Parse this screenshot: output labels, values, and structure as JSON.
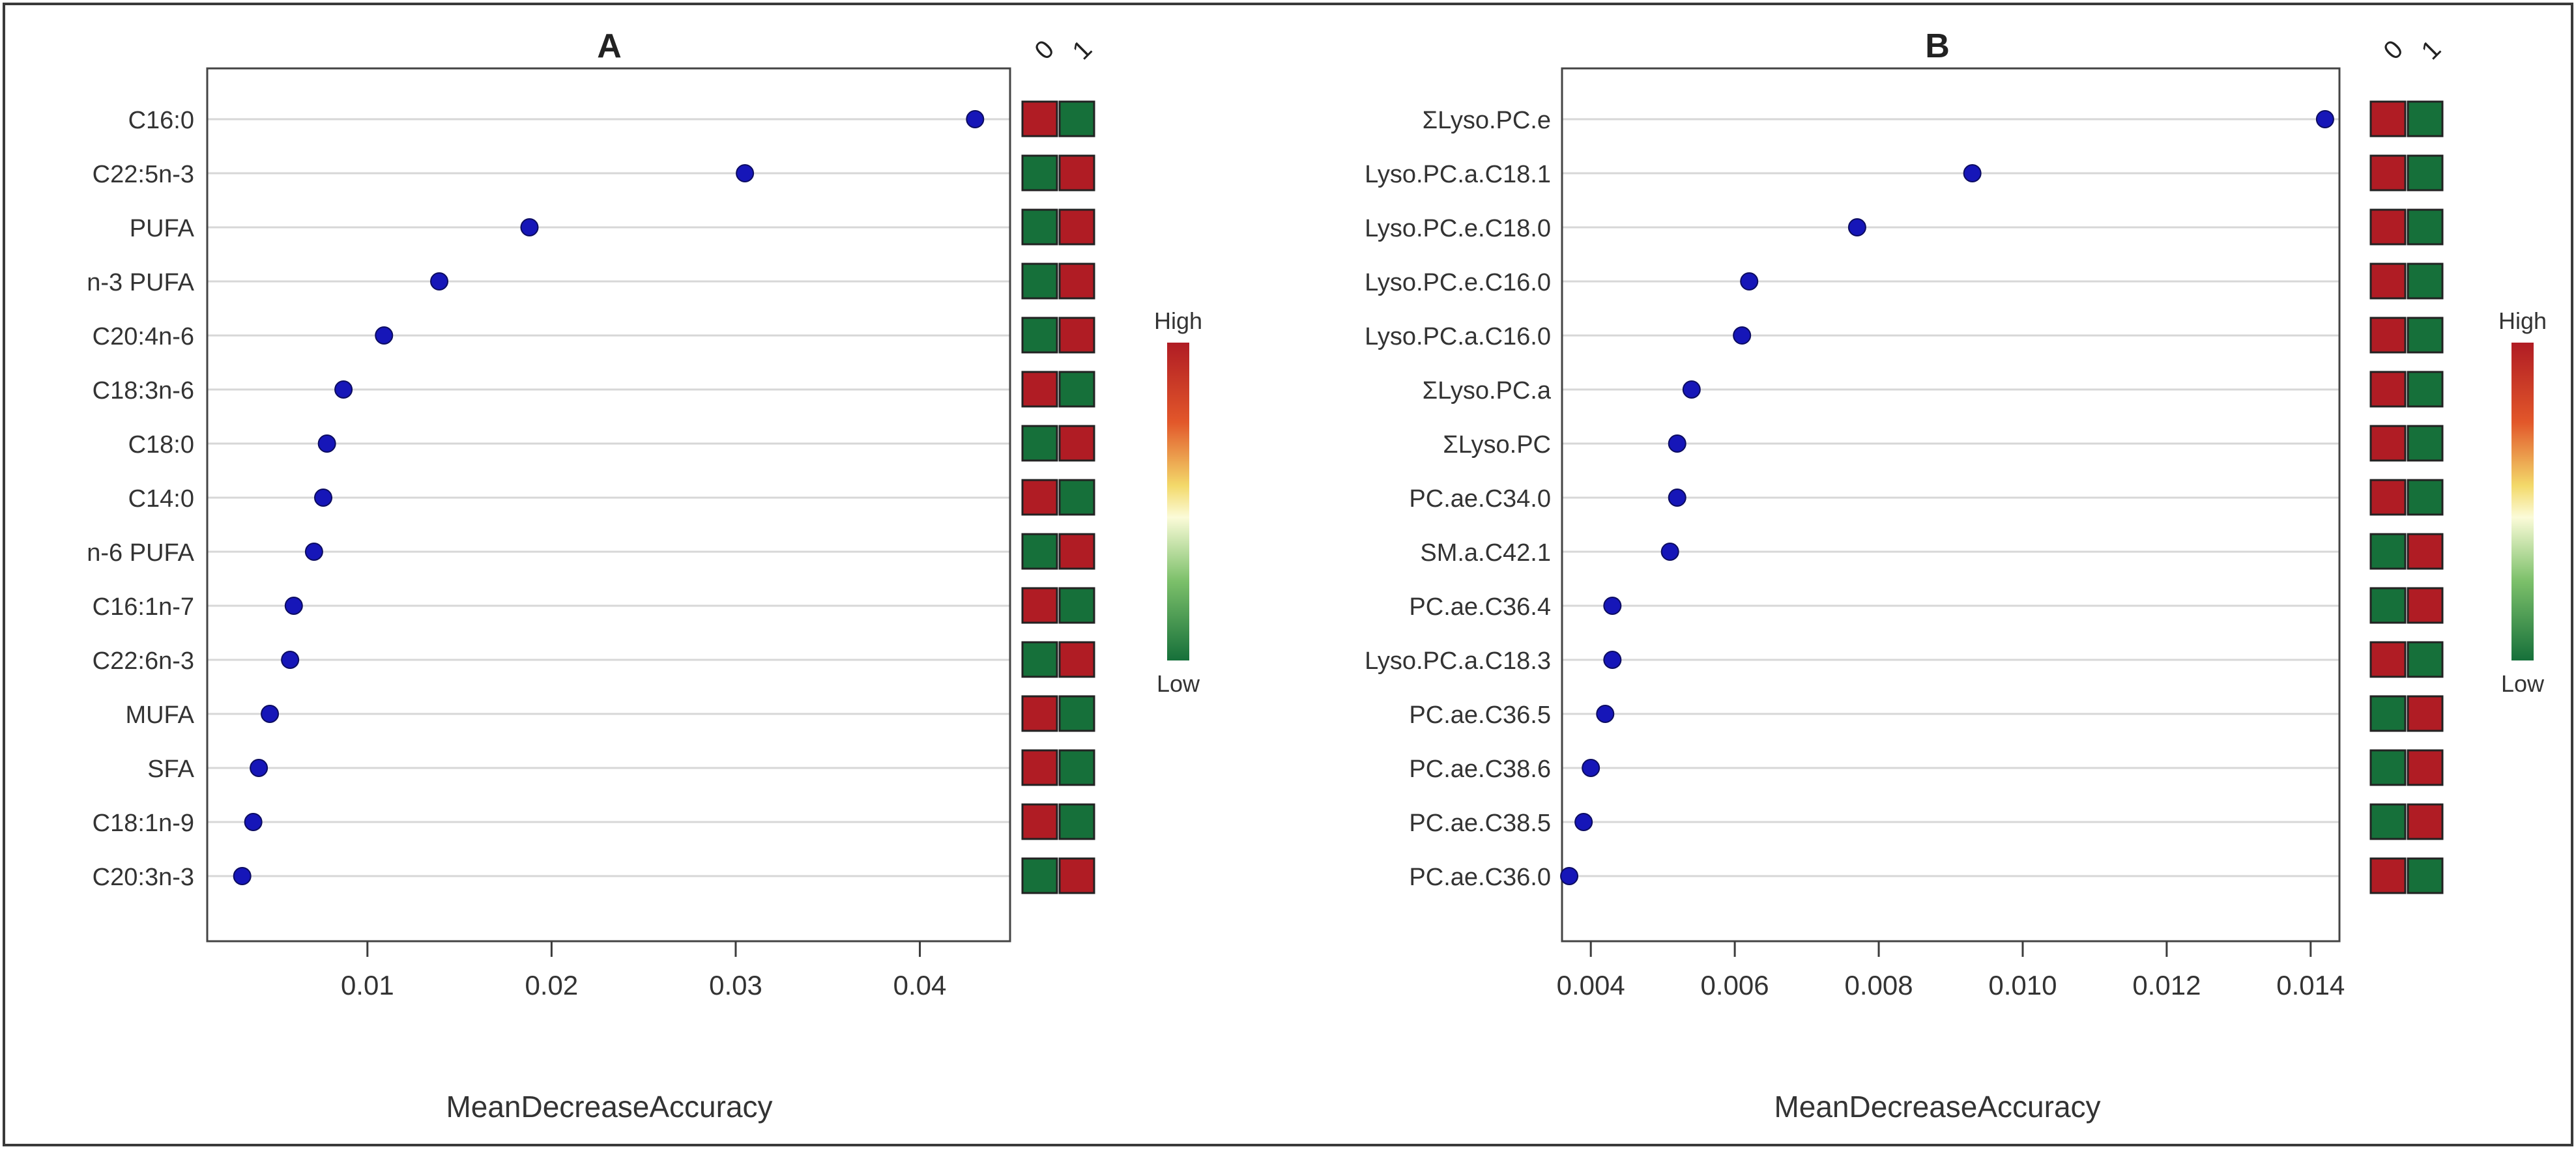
{
  "colors": {
    "point": "#1616b8",
    "high": "#b01c24",
    "low": "#16703a",
    "grid": "#d7d7d7",
    "axis": "#3c3c3c"
  },
  "chart_data": [
    {
      "type": "scatter",
      "panel": "A",
      "title": "A",
      "xlabel": "MeanDecreaseAccuracy",
      "ylabel": "",
      "xlim": [
        0.0013,
        0.0449
      ],
      "xticks": [
        0.01,
        0.02,
        0.03,
        0.04
      ],
      "xtick_labels": [
        "0.01",
        "0.02",
        "0.03",
        "0.04"
      ],
      "grid": true,
      "categories": [
        "C16:0",
        "C22:5n-3",
        "PUFA",
        "n-3 PUFA",
        "C20:4n-6",
        "C18:3n-6",
        "C18:0",
        "C14:0",
        "n-6 PUFA",
        "C16:1n-7",
        "C22:6n-3",
        "MUFA",
        "SFA",
        "C18:1n-9",
        "C20:3n-3"
      ],
      "values": [
        0.043,
        0.0305,
        0.0188,
        0.0139,
        0.0109,
        0.0087,
        0.0078,
        0.0076,
        0.0071,
        0.006,
        0.0058,
        0.0047,
        0.0041,
        0.0038,
        0.0032
      ],
      "heatmap": {
        "columns": [
          "0",
          "1"
        ],
        "cells": [
          [
            "high",
            "low"
          ],
          [
            "low",
            "high"
          ],
          [
            "low",
            "high"
          ],
          [
            "low",
            "high"
          ],
          [
            "low",
            "high"
          ],
          [
            "high",
            "low"
          ],
          [
            "low",
            "high"
          ],
          [
            "high",
            "low"
          ],
          [
            "low",
            "high"
          ],
          [
            "high",
            "low"
          ],
          [
            "low",
            "high"
          ],
          [
            "high",
            "low"
          ],
          [
            "high",
            "low"
          ],
          [
            "high",
            "low"
          ],
          [
            "low",
            "high"
          ]
        ]
      },
      "legend": {
        "high_label": "High",
        "low_label": "Low",
        "placement": "right"
      }
    },
    {
      "type": "scatter",
      "panel": "B",
      "title": "B",
      "xlabel": "MeanDecreaseAccuracy",
      "ylabel": "",
      "xlim": [
        0.0036,
        0.0144
      ],
      "xticks": [
        0.004,
        0.006,
        0.008,
        0.01,
        0.012,
        0.014
      ],
      "xtick_labels": [
        "0.004",
        "0.006",
        "0.008",
        "0.010",
        "0.012",
        "0.014"
      ],
      "grid": true,
      "categories": [
        "ΣLyso.PC.e",
        "Lyso.PC.a.C18.1",
        "Lyso.PC.e.C18.0",
        "Lyso.PC.e.C16.0",
        "Lyso.PC.a.C16.0",
        "ΣLyso.PC.a",
        "ΣLyso.PC",
        "PC.ae.C34.0",
        "SM.a.C42.1",
        "PC.ae.C36.4",
        "Lyso.PC.a.C18.3",
        "PC.ae.C36.5",
        "PC.ae.C38.6",
        "PC.ae.C38.5",
        "PC.ae.C36.0"
      ],
      "values": [
        0.0142,
        0.0093,
        0.0077,
        0.0062,
        0.0061,
        0.0054,
        0.0052,
        0.0052,
        0.0051,
        0.0043,
        0.0043,
        0.0042,
        0.004,
        0.0039,
        0.0037
      ],
      "heatmap": {
        "columns": [
          "0",
          "1"
        ],
        "cells": [
          [
            "high",
            "low"
          ],
          [
            "high",
            "low"
          ],
          [
            "high",
            "low"
          ],
          [
            "high",
            "low"
          ],
          [
            "high",
            "low"
          ],
          [
            "high",
            "low"
          ],
          [
            "high",
            "low"
          ],
          [
            "high",
            "low"
          ],
          [
            "low",
            "high"
          ],
          [
            "low",
            "high"
          ],
          [
            "high",
            "low"
          ],
          [
            "low",
            "high"
          ],
          [
            "low",
            "high"
          ],
          [
            "low",
            "high"
          ],
          [
            "high",
            "low"
          ]
        ]
      },
      "legend": {
        "high_label": "High",
        "low_label": "Low",
        "placement": "right"
      }
    }
  ]
}
